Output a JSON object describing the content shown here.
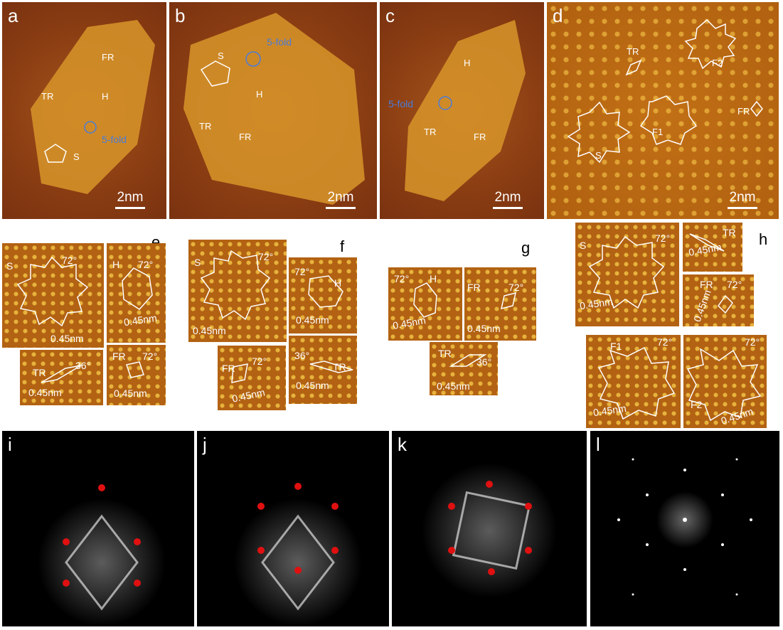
{
  "panels": {
    "a": {
      "letter": "a",
      "scale": "2nm",
      "labels": [
        "FR",
        "TR",
        "H",
        "5-fold",
        "S"
      ]
    },
    "b": {
      "letter": "b",
      "scale": "2nm",
      "labels": [
        "5-fold",
        "S",
        "H",
        "TR",
        "FR"
      ]
    },
    "c": {
      "letter": "c",
      "scale": "2nm",
      "labels": [
        "H",
        "5-fold",
        "TR",
        "FR"
      ]
    },
    "d": {
      "letter": "d",
      "scale": "2nm",
      "labels": [
        "TR",
        "F2",
        "FR",
        "S",
        "F1"
      ]
    },
    "e": {
      "letter": "e"
    },
    "f": {
      "letter": "f"
    },
    "g": {
      "letter": "g"
    },
    "h": {
      "letter": "h"
    },
    "i": {
      "letter": "i"
    },
    "j": {
      "letter": "j"
    },
    "k": {
      "letter": "k"
    },
    "l": {
      "letter": "l"
    }
  },
  "insets": {
    "e": [
      {
        "name": "S",
        "angle": "72°",
        "dist": "0.45nm"
      },
      {
        "name": "H",
        "angle": "72°",
        "dist": "0.45nm"
      },
      {
        "name": "TR",
        "angle": "36°",
        "dist": "0.45nm"
      },
      {
        "name": "FR",
        "angle": "72°",
        "dist": "0.45nm"
      }
    ],
    "f": [
      {
        "name": "S",
        "angle": "72°",
        "dist": "0.45nm"
      },
      {
        "name": "H",
        "angle": "72°",
        "dist": "0.45nm"
      },
      {
        "name": "FR",
        "angle": "72°",
        "dist": "0.45nm"
      },
      {
        "name": "TR",
        "angle": "36°",
        "dist": "0.45nm"
      }
    ],
    "g": [
      {
        "name": "H",
        "angle": "72°",
        "dist": "0.45nm"
      },
      {
        "name": "FR",
        "angle": "72°",
        "dist": "0.45nm"
      },
      {
        "name": "TR",
        "angle": "36°",
        "dist": "0.45nm"
      }
    ],
    "h": [
      {
        "name": "S",
        "angle": "72°",
        "dist": "0.45nm"
      },
      {
        "name": "TR",
        "angle": "",
        "dist": "0.45nm"
      },
      {
        "name": "FR",
        "angle": "72°",
        "dist": "0.45nm"
      },
      {
        "name": "F1",
        "angle": "72°",
        "dist": "0.45nm"
      },
      {
        "name": "F2",
        "angle": "72°",
        "dist": "0.45nm"
      }
    ]
  },
  "colors": {
    "stm": "#a4541c",
    "label": "#ffffff",
    "fivefold": "#4a7cd8",
    "fft_spot": "#e01010"
  }
}
